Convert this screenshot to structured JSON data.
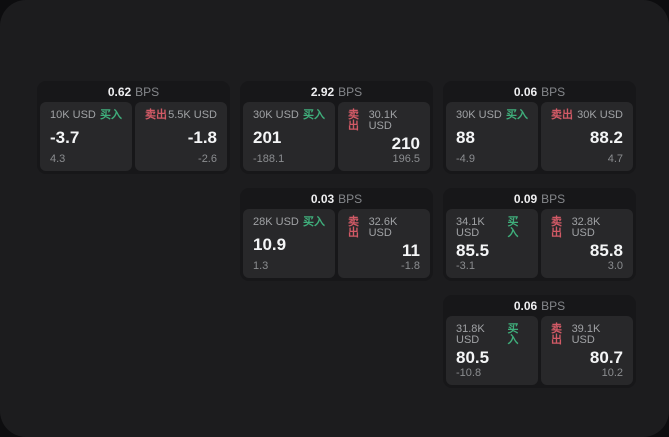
{
  "app": {
    "background_color": "#0d0d0f",
    "panel_color": "#1c1c1e",
    "card_color": "#171719",
    "tile_color": "#28282a",
    "accent_green": "#3fae7b",
    "accent_red": "#d25a66"
  },
  "labels": {
    "bps_unit": "BPS",
    "buy": "买入",
    "sell": "卖出"
  },
  "cards": [
    {
      "bps": "0.62",
      "buy": {
        "amount": "10K USD",
        "price": "-3.7",
        "change": "4.3"
      },
      "sell": {
        "amount": "5.5K USD",
        "price": "-1.8",
        "change": "-2.6"
      }
    },
    {
      "bps": "2.92",
      "buy": {
        "amount": "30K USD",
        "price": "201",
        "change": "-188.1"
      },
      "sell": {
        "amount": "30.1K USD",
        "price": "210",
        "change": "196.5"
      }
    },
    {
      "bps": "0.06",
      "buy": {
        "amount": "30K USD",
        "price": "88",
        "change": "-4.9"
      },
      "sell": {
        "amount": "30K USD",
        "price": "88.2",
        "change": "4.7"
      }
    },
    {
      "bps": "0.03",
      "buy": {
        "amount": "28K USD",
        "price": "10.9",
        "change": "1.3"
      },
      "sell": {
        "amount": "32.6K USD",
        "price": "11",
        "change": "-1.8"
      }
    },
    {
      "bps": "0.09",
      "buy": {
        "amount": "34.1K USD",
        "price": "85.5",
        "change": "-3.1"
      },
      "sell": {
        "amount": "32.8K USD",
        "price": "85.8",
        "change": "3.0"
      }
    },
    {
      "bps": "0.06",
      "buy": {
        "amount": "31.8K USD",
        "price": "80.5",
        "change": "-10.8"
      },
      "sell": {
        "amount": "39.1K USD",
        "price": "80.7",
        "change": "10.2"
      }
    }
  ]
}
